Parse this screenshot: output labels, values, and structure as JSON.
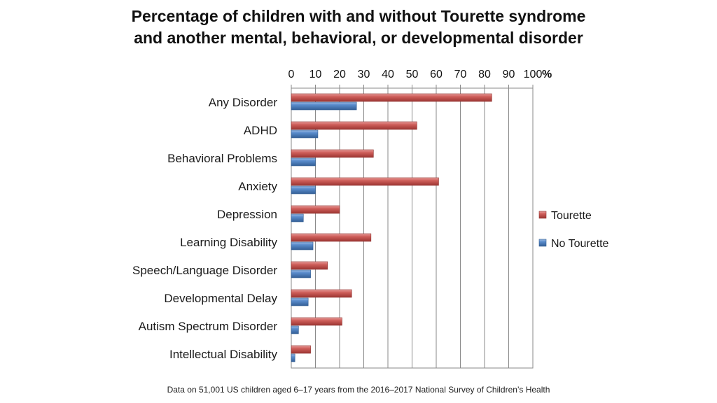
{
  "chart_data": {
    "type": "bar",
    "orientation": "horizontal",
    "title_lines": [
      "Percentage of children with and without Tourette syndrome",
      "and another mental, behavioral, or developmental disorder"
    ],
    "x_axis_position": "top",
    "x_unit": "%",
    "xlim": [
      0,
      100
    ],
    "xticks": [
      0,
      10,
      20,
      30,
      40,
      50,
      60,
      70,
      80,
      90,
      100
    ],
    "grid": true,
    "legend_position": "right",
    "categories": [
      "Any Disorder",
      "ADHD",
      "Behavioral Problems",
      "Anxiety",
      "Depression",
      "Learning Disability",
      "Speech/Language Disorder",
      "Developmental Delay",
      "Autism Spectrum Disorder",
      "Intellectual Disability"
    ],
    "series": [
      {
        "name": "Tourette",
        "color": "#c0504d",
        "values": [
          83,
          52,
          34,
          61,
          20,
          33,
          15,
          25,
          21,
          8
        ]
      },
      {
        "name": "No Tourette",
        "color": "#4f81bd",
        "values": [
          27,
          11,
          10,
          10,
          5,
          9,
          8,
          7,
          3,
          1.5
        ]
      }
    ]
  },
  "footnote": "Data on 51,001 US children aged 6–17 years from the 2016–2017 National Survey of Children’s Health"
}
